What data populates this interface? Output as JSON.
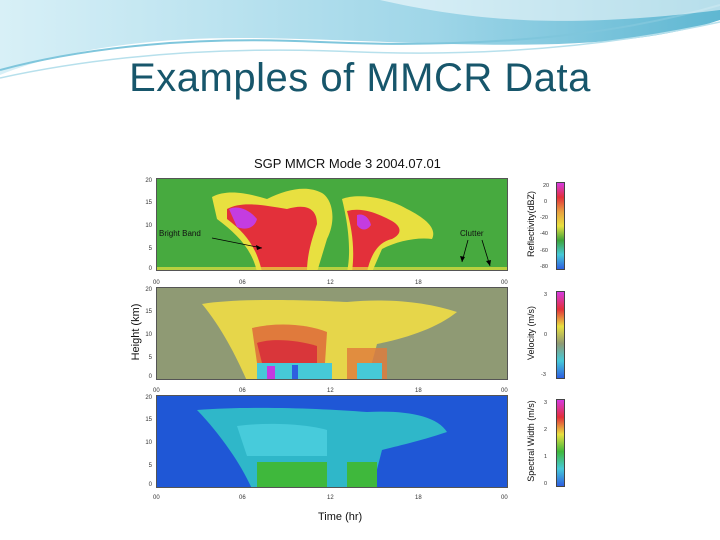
{
  "slide": {
    "title": "Examples of MMCR Data"
  },
  "figure": {
    "title": "SGP MMCR Mode 3 2004.07.01",
    "ylabel": "Height (km)",
    "xlabel": "Time (hr)",
    "xticks": [
      "00",
      "06",
      "12",
      "18",
      "00"
    ],
    "yticks": [
      "20",
      "15",
      "10",
      "5",
      "0"
    ],
    "panels": [
      {
        "id": "reflectivity",
        "colorbar_label": "Reflectivity(dBZ)",
        "colorbar_ticks": [
          "20",
          "0",
          "-20",
          "-40",
          "-60",
          "-80"
        ],
        "annotations": [
          "Bright Band",
          "Clutter"
        ]
      },
      {
        "id": "velocity",
        "colorbar_label": "Velocity (m/s)",
        "colorbar_ticks": [
          "3",
          "0",
          "-3"
        ]
      },
      {
        "id": "spectral-width",
        "colorbar_label": "Spectral Width (m/s)",
        "colorbar_ticks": [
          "3",
          "2",
          "1",
          "0"
        ]
      }
    ]
  },
  "colors": {
    "title": "#17566b",
    "panel1_bg": "#3da33a",
    "panel2_bg": "#8f9a74",
    "panel3_bg": "#1f57d6"
  }
}
